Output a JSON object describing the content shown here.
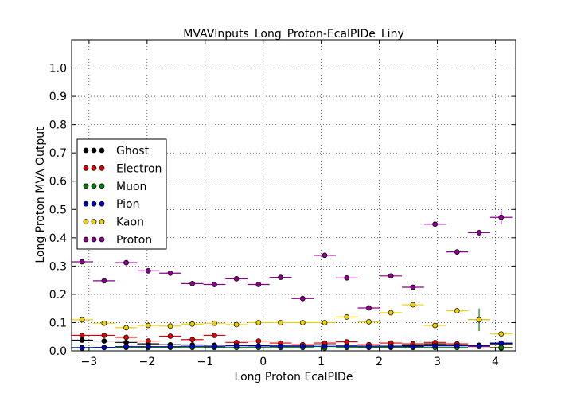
{
  "chart_data": {
    "type": "scatter",
    "title": "MVAVInputs_Long_Proton-EcalPIDe_Liny",
    "xlabel": "Long Proton EcalPIDe",
    "ylabel": "Long Proton MVA Output",
    "xlim": [
      -3.3,
      4.35
    ],
    "ylim": [
      0.0,
      1.1
    ],
    "xticks": [
      -3,
      -2,
      -1,
      0,
      1,
      2,
      3,
      4
    ],
    "yticks": [
      0.0,
      0.1,
      0.2,
      0.3,
      0.4,
      0.5,
      0.6,
      0.7,
      0.8,
      0.9,
      1.0
    ],
    "xtick_labels": [
      "−3",
      "−2",
      "−1",
      "0",
      "1",
      "2",
      "3",
      "4"
    ],
    "ytick_labels": [
      "0.0",
      "0.1",
      "0.2",
      "0.3",
      "0.4",
      "0.5",
      "0.6",
      "0.7",
      "0.8",
      "0.9",
      "1.0"
    ],
    "reference_line": 1.0,
    "grid": true,
    "legend_position": "center-left",
    "bin_half_width": 0.19,
    "x": [
      -3.12,
      -2.74,
      -2.36,
      -1.98,
      -1.6,
      -1.22,
      -0.84,
      -0.46,
      -0.08,
      0.3,
      0.68,
      1.06,
      1.44,
      1.82,
      2.2,
      2.58,
      2.96,
      3.34,
      3.72,
      4.1
    ],
    "series": [
      {
        "name": "Ghost",
        "color": "#000000",
        "values": [
          0.038,
          0.035,
          0.03,
          0.025,
          0.022,
          0.021,
          0.02,
          0.02,
          0.018,
          0.02,
          0.02,
          0.022,
          0.02,
          0.02,
          0.02,
          0.018,
          0.025,
          0.02,
          0.02,
          0.025
        ],
        "errors": [
          0.003,
          0.003,
          0.003,
          0.003,
          0.003,
          0.003,
          0.003,
          0.003,
          0.003,
          0.003,
          0.003,
          0.003,
          0.003,
          0.003,
          0.003,
          0.003,
          0.004,
          0.004,
          0.005,
          0.005
        ]
      },
      {
        "name": "Electron",
        "color": "#e00000",
        "values": [
          0.055,
          0.055,
          0.048,
          0.035,
          0.052,
          0.04,
          0.055,
          0.03,
          0.035,
          0.028,
          0.022,
          0.028,
          0.032,
          0.022,
          0.028,
          0.025,
          0.03,
          0.025,
          0.015,
          0.01
        ],
        "errors": [
          0.003,
          0.003,
          0.003,
          0.003,
          0.003,
          0.003,
          0.003,
          0.003,
          0.003,
          0.003,
          0.003,
          0.003,
          0.003,
          0.003,
          0.003,
          0.003,
          0.004,
          0.004,
          0.004,
          0.004
        ]
      },
      {
        "name": "Muon",
        "color": "#008000",
        "values": [
          0.012,
          0.012,
          0.012,
          0.012,
          0.012,
          0.012,
          0.012,
          0.012,
          0.012,
          0.012,
          0.012,
          0.01,
          0.012,
          0.012,
          0.012,
          0.012,
          0.012,
          0.012,
          0.11,
          0.012
        ],
        "errors": [
          0.002,
          0.002,
          0.002,
          0.002,
          0.002,
          0.002,
          0.002,
          0.002,
          0.002,
          0.002,
          0.002,
          0.002,
          0.002,
          0.002,
          0.002,
          0.002,
          0.002,
          0.002,
          0.04,
          0.002
        ]
      },
      {
        "name": "Pion",
        "color": "#0000c0",
        "values": [
          0.01,
          0.012,
          0.015,
          0.015,
          0.015,
          0.016,
          0.015,
          0.018,
          0.017,
          0.016,
          0.016,
          0.016,
          0.016,
          0.015,
          0.015,
          0.015,
          0.018,
          0.018,
          0.018,
          0.028
        ],
        "errors": [
          0.002,
          0.002,
          0.002,
          0.002,
          0.002,
          0.002,
          0.002,
          0.002,
          0.002,
          0.002,
          0.002,
          0.002,
          0.002,
          0.002,
          0.002,
          0.002,
          0.002,
          0.002,
          0.003,
          0.003
        ]
      },
      {
        "name": "Kaon",
        "color": "#f0d000",
        "values": [
          0.11,
          0.098,
          0.082,
          0.09,
          0.088,
          0.095,
          0.098,
          0.093,
          0.1,
          0.1,
          0.1,
          0.1,
          0.12,
          0.103,
          0.135,
          0.163,
          0.09,
          0.142,
          0.11,
          0.06
        ],
        "errors": [
          0.004,
          0.004,
          0.004,
          0.004,
          0.004,
          0.004,
          0.004,
          0.004,
          0.004,
          0.004,
          0.004,
          0.004,
          0.004,
          0.004,
          0.005,
          0.006,
          0.006,
          0.006,
          0.008,
          0.006
        ]
      },
      {
        "name": "Proton",
        "color": "#8b008b",
        "values": [
          0.315,
          0.248,
          0.312,
          0.283,
          0.275,
          0.238,
          0.235,
          0.255,
          0.235,
          0.26,
          0.185,
          0.338,
          0.258,
          0.152,
          0.265,
          0.225,
          0.448,
          0.35,
          0.418,
          0.472
        ],
        "errors": [
          0.005,
          0.005,
          0.005,
          0.005,
          0.005,
          0.005,
          0.005,
          0.005,
          0.005,
          0.005,
          0.005,
          0.006,
          0.006,
          0.006,
          0.006,
          0.007,
          0.008,
          0.008,
          0.01,
          0.025
        ]
      }
    ]
  }
}
